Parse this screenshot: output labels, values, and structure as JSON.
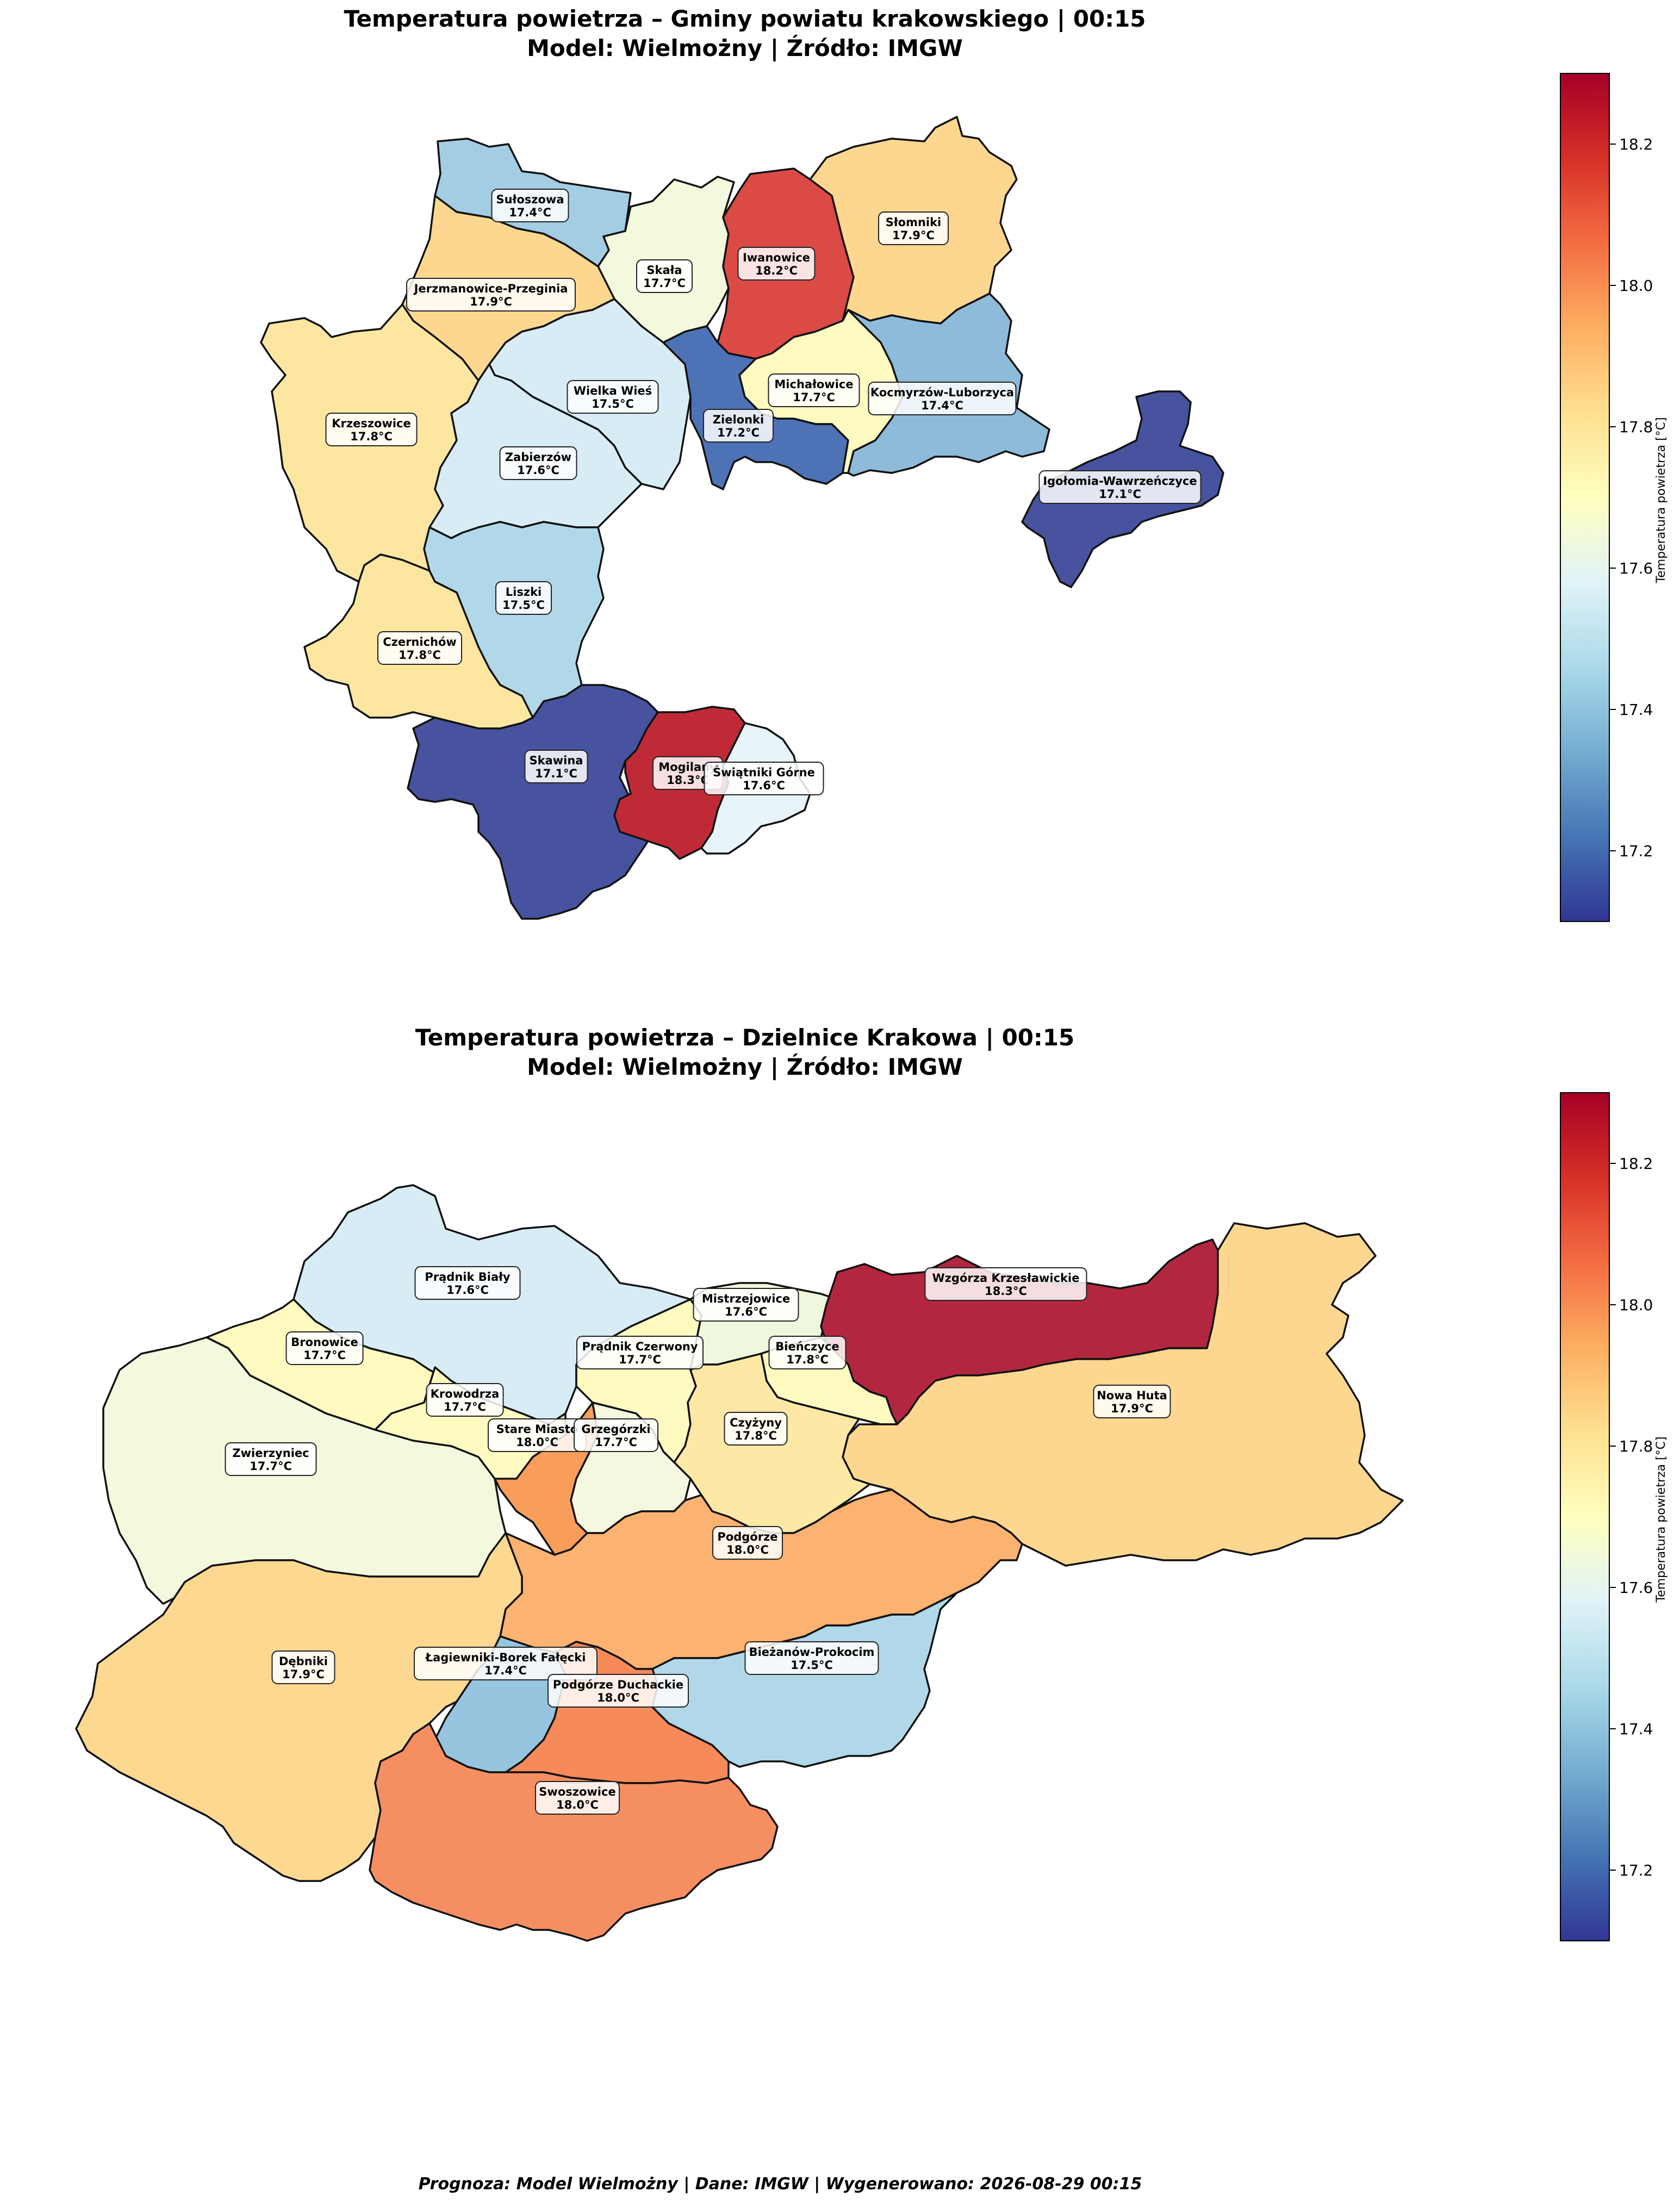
{
  "map1": {
    "title_line1": "Temperatura powietrza – Gminy powiatu krakowskiego | 00:15",
    "title_line2": "Model: Wielmożny | Źródło: IMGW",
    "regions": [
      {
        "name": "Sułoszowa",
        "value": "17.4°C"
      },
      {
        "name": "Skała",
        "value": "17.7°C"
      },
      {
        "name": "Iwanowice",
        "value": "18.2°C"
      },
      {
        "name": "Słomniki",
        "value": "17.9°C"
      },
      {
        "name": "Jerzmanowice-Przeginia",
        "value": "17.9°C"
      },
      {
        "name": "Krzeszowice",
        "value": "17.8°C"
      },
      {
        "name": "Wielka Wieś",
        "value": "17.5°C"
      },
      {
        "name": "Zielonki",
        "value": "17.2°C"
      },
      {
        "name": "Michałowice",
        "value": "17.7°C"
      },
      {
        "name": "Kocmyrzów-Luborzyca",
        "value": "17.4°C"
      },
      {
        "name": "Igołomia-Wawrzeńczyce",
        "value": "17.1°C"
      },
      {
        "name": "Zabierzów",
        "value": "17.6°C"
      },
      {
        "name": "Liszki",
        "value": "17.5°C"
      },
      {
        "name": "Czernichów",
        "value": "17.8°C"
      },
      {
        "name": "Skawina",
        "value": "17.1°C"
      },
      {
        "name": "Mogilany",
        "value": "18.3°C"
      },
      {
        "name": "Świątniki Górne",
        "value": "17.6°C"
      }
    ]
  },
  "map2": {
    "title_line1": "Temperatura powietrza – Dzielnice Krakowa | 00:15",
    "title_line2": "Model: Wielmożny | Źródło: IMGW",
    "regions": [
      {
        "name": "Prądnik Biały",
        "value": "17.6°C"
      },
      {
        "name": "Mistrzejowice",
        "value": "17.6°C"
      },
      {
        "name": "Wzgórza Krzesławickie",
        "value": "18.3°C"
      },
      {
        "name": "Bronowice",
        "value": "17.7°C"
      },
      {
        "name": "Prądnik Czerwony",
        "value": "17.7°C"
      },
      {
        "name": "Bieńczyce",
        "value": "17.8°C"
      },
      {
        "name": "Krowodrza",
        "value": "17.7°C"
      },
      {
        "name": "Nowa Huta",
        "value": "17.9°C"
      },
      {
        "name": "Stare Miasto",
        "value": "18.0°C"
      },
      {
        "name": "Grzegórzki",
        "value": "17.7°C"
      },
      {
        "name": "Czyżyny",
        "value": "17.8°C"
      },
      {
        "name": "Zwierzyniec",
        "value": "17.7°C"
      },
      {
        "name": "Podgórze",
        "value": "18.0°C"
      },
      {
        "name": "Dębniki",
        "value": "17.9°C"
      },
      {
        "name": "Łagiewniki-Borek Fałęcki",
        "value": "17.4°C"
      },
      {
        "name": "Bieżanów-Prokocim",
        "value": "17.5°C"
      },
      {
        "name": "Podgórze Duchackie",
        "value": "18.0°C"
      },
      {
        "name": "Swoszowice",
        "value": "18.0°C"
      }
    ]
  },
  "colorbar": {
    "label": "Temperatura powietrza [°C]",
    "ticks": [
      "17.2",
      "17.4",
      "17.6",
      "17.8",
      "18.0",
      "18.2"
    ],
    "colormap": "RdYlBu_r",
    "range": [
      17.1,
      18.3
    ],
    "colors": [
      "#313695",
      "#4575b4",
      "#74add1",
      "#abd9e9",
      "#e0f3f8",
      "#ffffbf",
      "#fee090",
      "#fdae61",
      "#f46d43",
      "#d73027",
      "#a50026"
    ]
  },
  "footer": "Prognoza: Model Wielmożny | Dane: IMGW | Wygenerowano: 2026-08-29 00:15"
}
